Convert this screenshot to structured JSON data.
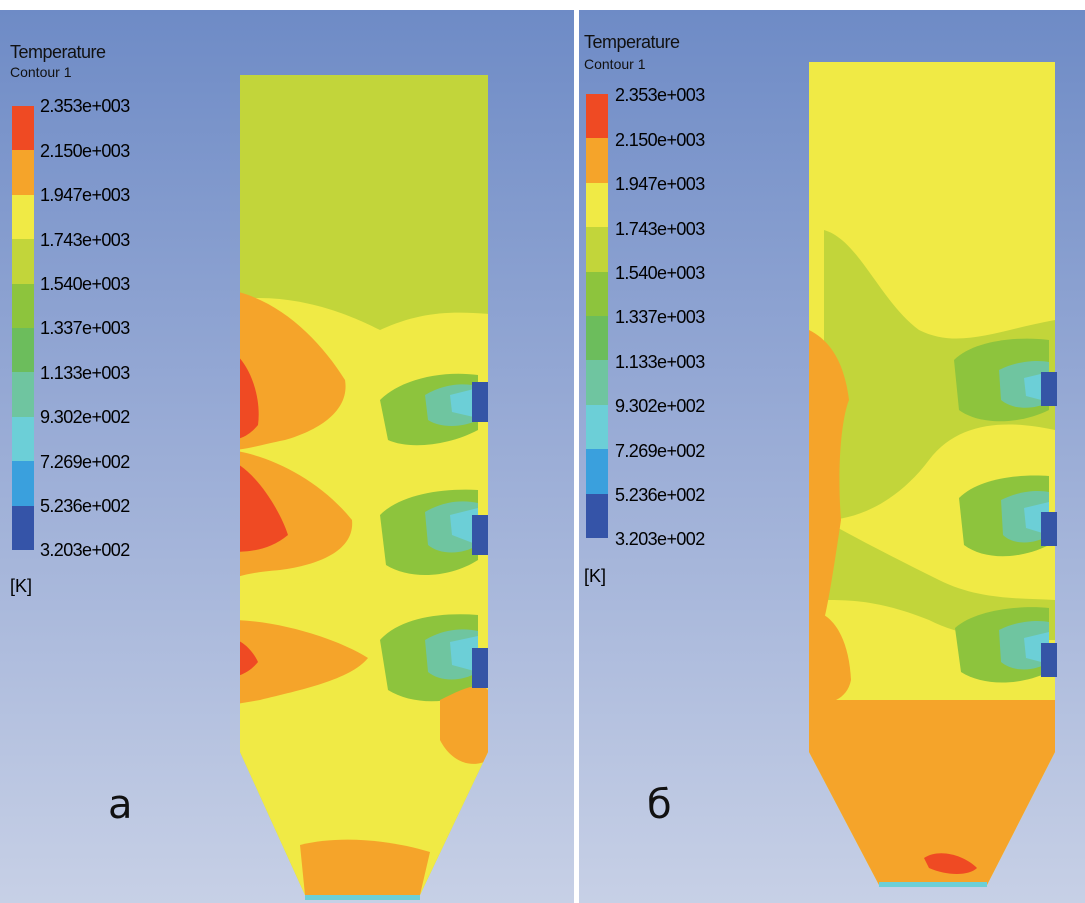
{
  "legend": {
    "title": "Temperature",
    "subtitle": "Contour 1",
    "unit": "[K]",
    "ticks": [
      "2.353e+003",
      "2.150e+003",
      "1.947e+003",
      "1.743e+003",
      "1.540e+003",
      "1.337e+003",
      "1.133e+003",
      "9.302e+002",
      "7.269e+002",
      "5.236e+002",
      "3.203e+002"
    ],
    "colors": [
      "#ef4a23",
      "#f5a42a",
      "#f0ea45",
      "#c2d53a",
      "#8dc43d",
      "#6cbd5c",
      "#6fc5a0",
      "#6ccfd7",
      "#3aa0dd",
      "#3554a8"
    ]
  },
  "panels": [
    {
      "label": "a"
    },
    {
      "label": "б"
    }
  ],
  "palette": {
    "background_top": "#6e8bc6",
    "background_bottom": "#c7d0e6",
    "injector": "#3555a6"
  }
}
